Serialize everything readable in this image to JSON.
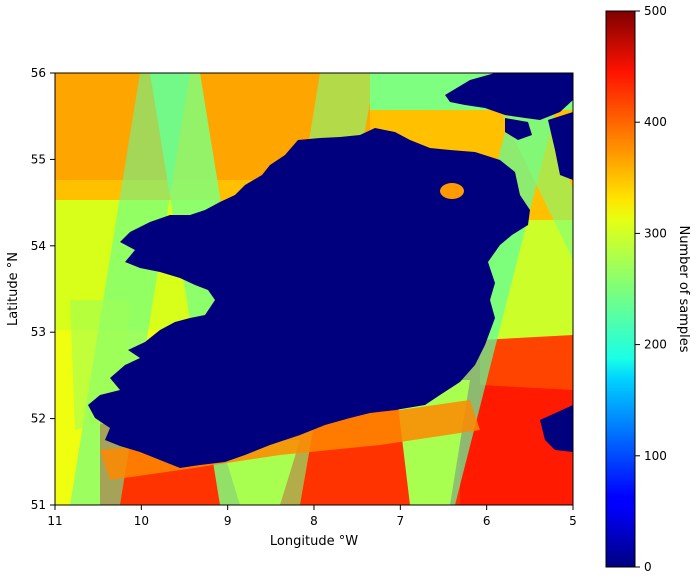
{
  "chart_data": {
    "type": "heatmap",
    "title": "",
    "xlabel": "Longitude °W",
    "ylabel": "Latitude °N",
    "xlim": [
      11,
      5
    ],
    "ylim": [
      51,
      56
    ],
    "x_ticks": [
      "11",
      "10",
      "9",
      "8",
      "7",
      "6",
      "5"
    ],
    "y_ticks": [
      "51",
      "52",
      "53",
      "54",
      "55",
      "56"
    ],
    "colorbar": {
      "label": "Number of samples",
      "range": [
        0,
        500
      ],
      "ticks": [
        "0",
        "100",
        "200",
        "300",
        "400",
        "500"
      ],
      "colormap": "jet"
    },
    "land_value": 0,
    "regions": [
      {
        "area": "north-west sea",
        "approx_samples": 370
      },
      {
        "area": "north-east sea",
        "approx_samples": 330
      },
      {
        "area": "west sea",
        "approx_samples": 300
      },
      {
        "area": "south sea",
        "approx_samples": 440
      },
      {
        "area": "south-east sea",
        "approx_samples": 450
      },
      {
        "area": "overlap swaths",
        "approx_samples": 230
      }
    ]
  }
}
